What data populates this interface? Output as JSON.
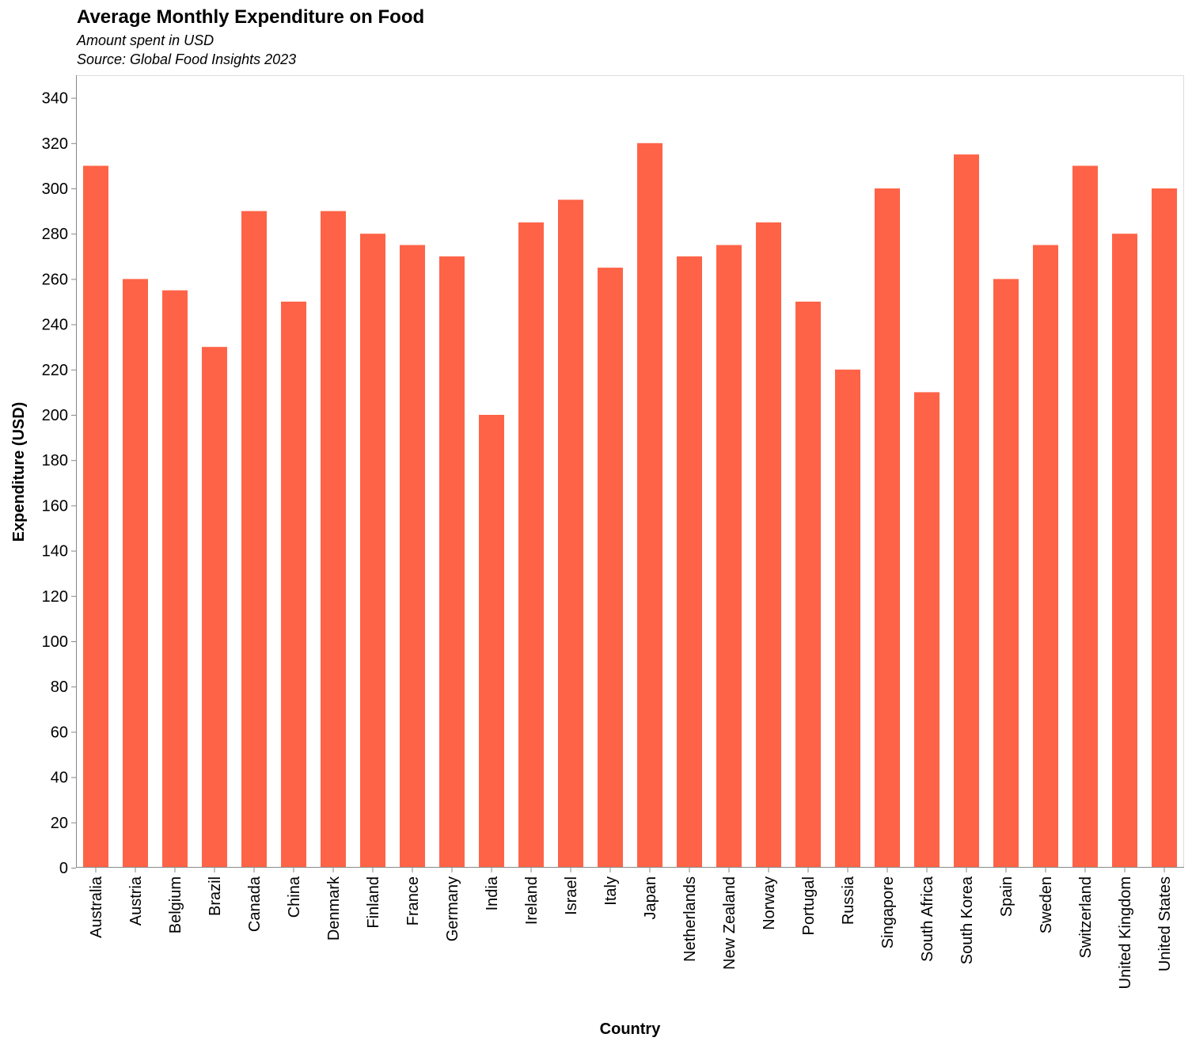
{
  "chart_data": {
    "type": "bar",
    "title": "Average Monthly Expenditure on Food",
    "subtitle": [
      "Amount spent in USD",
      "Source: Global Food Insights 2023"
    ],
    "xlabel": "Country",
    "ylabel": "Expenditure (USD)",
    "ylim": [
      0,
      350
    ],
    "yticks": [
      0,
      20,
      40,
      60,
      80,
      100,
      120,
      140,
      160,
      180,
      200,
      220,
      240,
      260,
      280,
      300,
      320,
      340
    ],
    "categories": [
      "Australia",
      "Austria",
      "Belgium",
      "Brazil",
      "Canada",
      "China",
      "Denmark",
      "Finland",
      "France",
      "Germany",
      "India",
      "Ireland",
      "Israel",
      "Italy",
      "Japan",
      "Netherlands",
      "New Zealand",
      "Norway",
      "Portugal",
      "Russia",
      "Singapore",
      "South Africa",
      "South Korea",
      "Spain",
      "Sweden",
      "Switzerland",
      "United Kingdom",
      "United States"
    ],
    "values": [
      310,
      260,
      255,
      230,
      290,
      250,
      290,
      280,
      275,
      270,
      200,
      285,
      295,
      265,
      320,
      270,
      275,
      285,
      250,
      220,
      300,
      210,
      315,
      260,
      275,
      310,
      280,
      300
    ],
    "bar_color": "#ff6347",
    "grid": false,
    "legend": "none"
  }
}
